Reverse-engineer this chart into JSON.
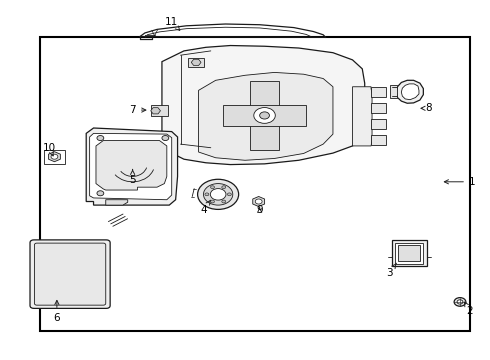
{
  "background_color": "#ffffff",
  "line_color": "#1a1a1a",
  "text_color": "#000000",
  "figsize": [
    4.9,
    3.6
  ],
  "dpi": 100,
  "border": [
    0.08,
    0.08,
    0.88,
    0.82
  ],
  "labels": {
    "1": [
      0.965,
      0.495,
      0.9,
      0.495
    ],
    "2": [
      0.96,
      0.135,
      0.948,
      0.162
    ],
    "3": [
      0.795,
      0.24,
      0.81,
      0.268
    ],
    "4": [
      0.415,
      0.415,
      0.43,
      0.445
    ],
    "5": [
      0.27,
      0.5,
      0.27,
      0.53
    ],
    "6": [
      0.115,
      0.115,
      0.115,
      0.175
    ],
    "7": [
      0.27,
      0.695,
      0.305,
      0.695
    ],
    "8": [
      0.875,
      0.7,
      0.858,
      0.7
    ],
    "9": [
      0.53,
      0.415,
      0.53,
      0.432
    ],
    "10": [
      0.1,
      0.59,
      0.108,
      0.565
    ],
    "11": [
      0.35,
      0.94,
      0.368,
      0.915
    ]
  }
}
